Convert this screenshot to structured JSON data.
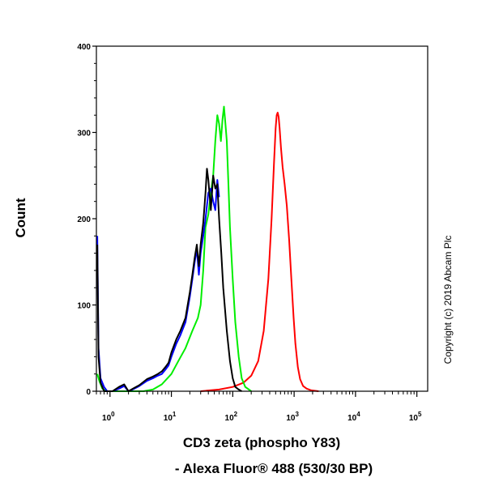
{
  "chart_data": {
    "type": "line",
    "xscale": "log",
    "xlim": [
      0.6,
      150000
    ],
    "ylim": [
      0,
      400
    ],
    "ylabel": "Count",
    "xlabel_lines": [
      "CD3 zeta (phospho Y83)",
      "- Alexa Fluor® 488 (530/30 BP)"
    ],
    "x_ticks": [
      {
        "value": 1,
        "base": "10",
        "exp": "0"
      },
      {
        "value": 10,
        "base": "10",
        "exp": "1"
      },
      {
        "value": 100,
        "base": "10",
        "exp": "2"
      },
      {
        "value": 1000,
        "base": "10",
        "exp": "3"
      },
      {
        "value": 10000,
        "base": "10",
        "exp": "4"
      },
      {
        "value": 100000,
        "base": "10",
        "exp": "5"
      }
    ],
    "y_ticks": [
      0,
      100,
      200,
      300,
      400
    ],
    "grid": false,
    "series": [
      {
        "color": "#ff0000",
        "x": [
          30,
          60,
          100,
          150,
          200,
          260,
          320,
          380,
          430,
          470,
          500,
          520,
          540,
          560,
          580,
          610,
          650,
          700,
          760,
          830,
          900,
          980,
          1050,
          1150,
          1250,
          1400,
          1600,
          1900,
          2500
        ],
        "y": [
          0,
          2,
          5,
          10,
          18,
          35,
          70,
          130,
          200,
          265,
          305,
          320,
          323,
          318,
          305,
          282,
          260,
          240,
          215,
          175,
          130,
          85,
          55,
          28,
          14,
          6,
          3,
          1,
          0
        ]
      },
      {
        "color": "#00ee00",
        "x": [
          0.62,
          0.67,
          0.75,
          0.9,
          1.5,
          2.5,
          3.5,
          5,
          7,
          10,
          13,
          17,
          22,
          27,
          30,
          33,
          36,
          40,
          44,
          48,
          52,
          56,
          60,
          64,
          68,
          72,
          76,
          80,
          85,
          90,
          100,
          110,
          125,
          140,
          160,
          200
        ],
        "y": [
          20,
          12,
          3,
          0,
          0,
          0,
          0,
          2,
          8,
          20,
          35,
          50,
          70,
          85,
          100,
          140,
          190,
          205,
          230,
          250,
          290,
          320,
          310,
          290,
          315,
          330,
          310,
          290,
          240,
          190,
          130,
          80,
          40,
          15,
          5,
          0
        ]
      },
      {
        "color": "#0000ff",
        "x": [
          0.62,
          0.65,
          0.7,
          0.8,
          0.9,
          1.1,
          1.4,
          1.7,
          2,
          2.5,
          3,
          4,
          5,
          6,
          7,
          8,
          9,
          10,
          12,
          14,
          17,
          20,
          22,
          24,
          26,
          28,
          30,
          33,
          36,
          40,
          44,
          48,
          52,
          56,
          60
        ],
        "y": [
          180,
          50,
          15,
          5,
          0,
          0,
          3,
          6,
          0,
          3,
          6,
          12,
          15,
          18,
          20,
          25,
          30,
          40,
          55,
          65,
          80,
          110,
          130,
          150,
          165,
          135,
          160,
          180,
          200,
          230,
          235,
          220,
          210,
          245,
          225
        ]
      },
      {
        "color": "#000000",
        "x": [
          0.62,
          0.65,
          0.7,
          0.8,
          0.9,
          1.1,
          1.4,
          1.7,
          2,
          2.5,
          3,
          4,
          5,
          6,
          7,
          8,
          9,
          10,
          12,
          14,
          17,
          20,
          22,
          24,
          26,
          28,
          30,
          33,
          36,
          38,
          40,
          44,
          48,
          52,
          56,
          60,
          65,
          70,
          80,
          90,
          100,
          110,
          125,
          140
        ],
        "y": [
          170,
          40,
          10,
          0,
          0,
          0,
          5,
          8,
          0,
          4,
          7,
          14,
          17,
          20,
          23,
          28,
          33,
          45,
          60,
          70,
          85,
          115,
          135,
          155,
          170,
          145,
          170,
          195,
          230,
          258,
          245,
          210,
          250,
          235,
          240,
          200,
          160,
          120,
          70,
          35,
          15,
          5,
          2,
          0
        ]
      }
    ]
  },
  "watermark": "Copyright (c) 2019 Abcam Plc"
}
